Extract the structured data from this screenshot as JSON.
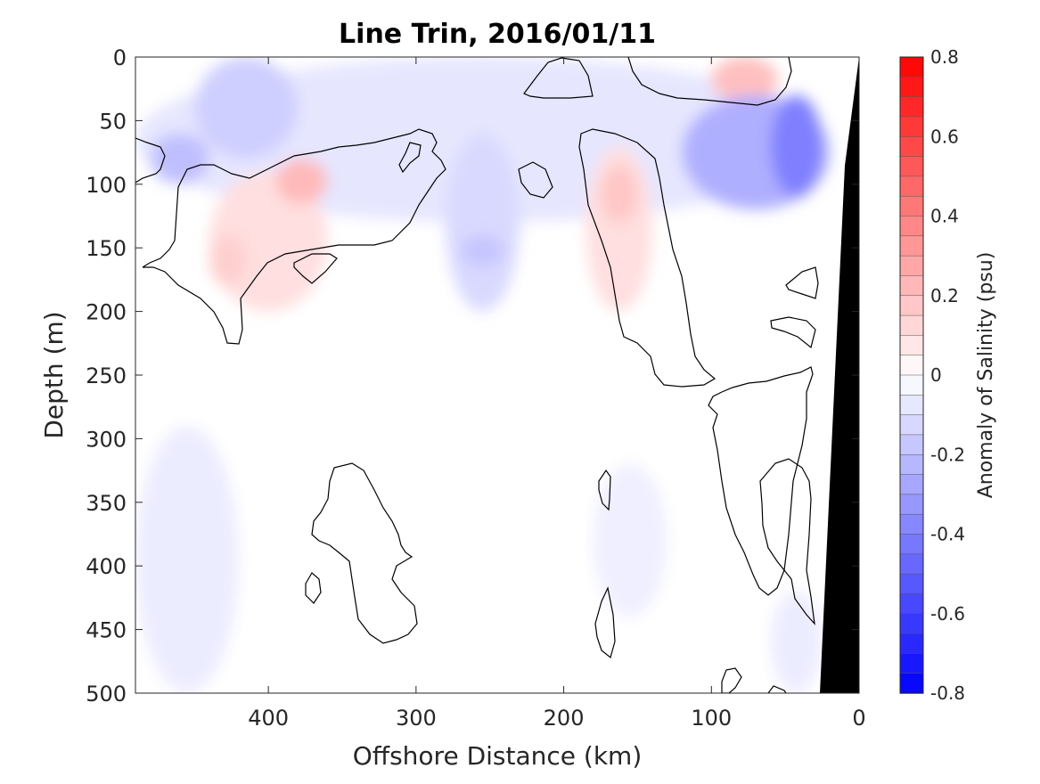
{
  "chart_data": {
    "type": "heatmap",
    "title": "Line Trin, 2016/01/11",
    "xlabel": "Offshore Distance (km)",
    "ylabel": "Depth (m)",
    "xlim": [
      490,
      0
    ],
    "ylim": [
      0,
      500
    ],
    "x_reversed": true,
    "y_reversed": true,
    "x_ticks": [
      "400",
      "300",
      "200",
      "100",
      "0"
    ],
    "x_tick_values": [
      400,
      300,
      200,
      100,
      0
    ],
    "y_ticks": [
      "0",
      "50",
      "100",
      "150",
      "200",
      "250",
      "300",
      "350",
      "400",
      "450",
      "500"
    ],
    "y_tick_values": [
      0,
      50,
      100,
      150,
      200,
      250,
      300,
      350,
      400,
      450,
      500
    ],
    "colorbar": {
      "label": "Anomaly of Salinity (psu)",
      "range": [
        -0.8,
        0.8
      ],
      "step": 0.05,
      "ticks": [
        "0.8",
        "0.6",
        "0.4",
        "0.2",
        "0",
        "-0.2",
        "-0.4",
        "-0.6",
        "-0.8"
      ],
      "tick_values": [
        0.8,
        0.6,
        0.4,
        0.2,
        0,
        -0.2,
        -0.4,
        -0.6,
        -0.8
      ],
      "colormap": "blue-white-red",
      "neg_color": "#0000ff",
      "pos_color": "#ff0000",
      "zero_color": "#ffffff"
    },
    "zero_contour_color": "#000000",
    "bathymetry_color": "#000000",
    "features": [
      {
        "x": [
          490,
          20
        ],
        "y": [
          0,
          130
        ],
        "value": -0.08
      },
      {
        "x": [
          450,
          380
        ],
        "y": [
          0,
          80
        ],
        "value": -0.15
      },
      {
        "x": [
          480,
          440
        ],
        "y": [
          60,
          100
        ],
        "value": -0.2
      },
      {
        "x": [
          440,
          360
        ],
        "y": [
          90,
          200
        ],
        "value": 0.1
      },
      {
        "x": [
          395,
          360
        ],
        "y": [
          80,
          115
        ],
        "value": 0.22
      },
      {
        "x": [
          440,
          415
        ],
        "y": [
          140,
          180
        ],
        "value": 0.15
      },
      {
        "x": [
          280,
          230
        ],
        "y": [
          60,
          200
        ],
        "value": -0.12
      },
      {
        "x": [
          270,
          240
        ],
        "y": [
          140,
          165
        ],
        "value": -0.18
      },
      {
        "x": [
          185,
          140
        ],
        "y": [
          70,
          200
        ],
        "value": 0.1
      },
      {
        "x": [
          175,
          150
        ],
        "y": [
          85,
          130
        ],
        "value": 0.18
      },
      {
        "x": [
          100,
          55
        ],
        "y": [
          0,
          35
        ],
        "value": 0.2
      },
      {
        "x": [
          120,
          20
        ],
        "y": [
          30,
          120
        ],
        "value": -0.25
      },
      {
        "x": [
          60,
          25
        ],
        "y": [
          30,
          110
        ],
        "value": -0.4
      },
      {
        "x": [
          490,
          420
        ],
        "y": [
          290,
          500
        ],
        "value": -0.06
      },
      {
        "x": [
          60,
          25
        ],
        "y": [
          420,
          500
        ],
        "value": -0.06
      },
      {
        "x": [
          180,
          130
        ],
        "y": [
          320,
          440
        ],
        "value": -0.05
      }
    ]
  }
}
